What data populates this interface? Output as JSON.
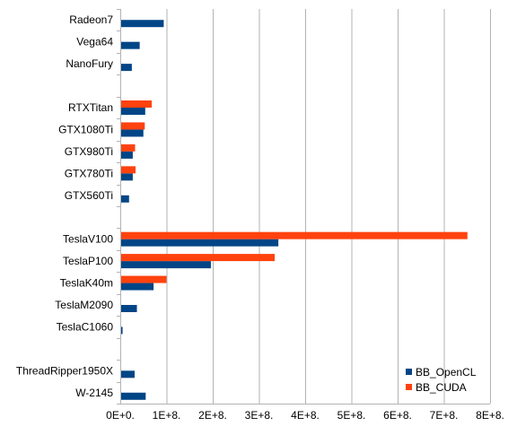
{
  "chart_data": {
    "type": "bar",
    "orientation": "horizontal",
    "categories": [
      "Radeon7",
      "Vega64",
      "NanoFury",
      "",
      "RTXTitan",
      "GTX1080Ti",
      "GTX980Ti",
      "GTX780Ti",
      "GTX560Ti",
      "",
      "TeslaV100",
      "TeslaP100",
      "TeslaK40m",
      "TeslaM2090",
      "TeslaC1060",
      "",
      "ThreadRipper1950X",
      "W-2145"
    ],
    "series": [
      {
        "name": "BB_OpenCL",
        "color": "#004586",
        "values": [
          94000000,
          42000000,
          25000000,
          null,
          54000000,
          50000000,
          27000000,
          27000000,
          19000000,
          null,
          342000000,
          196000000,
          72000000,
          36000000,
          5000000,
          null,
          31000000,
          55000000
        ]
      },
      {
        "name": "BB_CUDA",
        "color": "#ff420e",
        "values": [
          null,
          null,
          null,
          null,
          68000000,
          53000000,
          32000000,
          33000000,
          null,
          null,
          751000000,
          334000000,
          100000000,
          null,
          null,
          null,
          null,
          null
        ]
      }
    ],
    "xlim": [
      0,
      800000000
    ],
    "xticks": [
      {
        "value": 0,
        "label": "0E+0."
      },
      {
        "value": 100000000,
        "label": "1E+8."
      },
      {
        "value": 200000000,
        "label": "2E+8."
      },
      {
        "value": 300000000,
        "label": "3E+8."
      },
      {
        "value": 400000000,
        "label": "4E+8."
      },
      {
        "value": 500000000,
        "label": "5E+8."
      },
      {
        "value": 600000000,
        "label": "6E+8."
      },
      {
        "value": 700000000,
        "label": "7E+8."
      },
      {
        "value": 800000000,
        "label": "8E+8."
      }
    ],
    "grid": true,
    "legend_position": "bottom-right",
    "title": "",
    "xlabel": "",
    "ylabel": ""
  }
}
